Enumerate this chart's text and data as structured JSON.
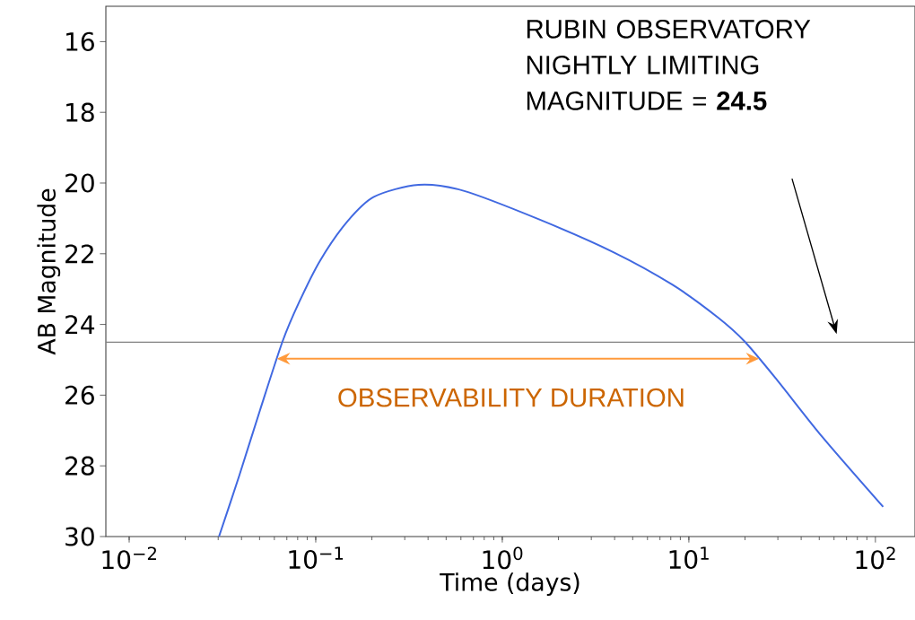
{
  "chart_data": {
    "type": "line",
    "xlabel": "Time (days)",
    "ylabel": "AB Magnitude",
    "log": "x",
    "xlim": [
      0.0075,
      163
    ],
    "ylim": [
      30,
      15
    ],
    "xticks": [
      {
        "value": 0.01,
        "label": "10$^{−2}$"
      },
      {
        "value": 0.1,
        "label": "10$^{−1}$"
      },
      {
        "value": 1,
        "label": "10$^{0}$"
      },
      {
        "value": 10,
        "label": "10$^{1}$"
      },
      {
        "value": 100,
        "label": "10$^{2}$"
      }
    ],
    "yticks": [
      16,
      18,
      20,
      22,
      24,
      26,
      28,
      30
    ],
    "series": [
      {
        "color": "#4169e1",
        "x": [
          0.0303,
          0.0389,
          0.0503,
          0.0664,
          0.0813,
          0.1054,
          0.147,
          0.205,
          0.356,
          0.62,
          1.56,
          3.92,
          8.18,
          14.3,
          19.9,
          29.8,
          51.9,
          110
        ],
        "values": [
          30,
          28.28,
          26.42,
          24.48,
          23.38,
          22.2,
          21.1,
          20.39,
          20.05,
          20.22,
          21.02,
          21.95,
          22.88,
          23.8,
          24.48,
          25.58,
          27.18,
          29.16
        ]
      }
    ],
    "ref_lines": [
      {
        "axis": "y",
        "value": 24.5,
        "color": "#808080"
      }
    ],
    "annotations": [
      "RUBIN OBSERVATORY NIGHTLY LIMITING MAGNITUDE = **24.5**",
      "OBSERVABILITY DURATION"
    ]
  }
}
